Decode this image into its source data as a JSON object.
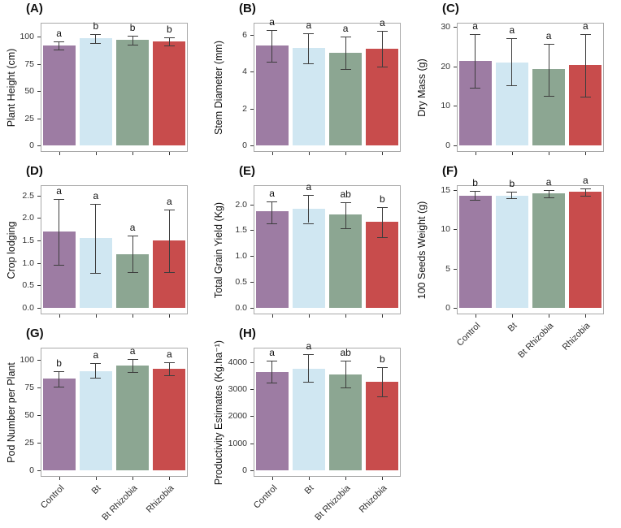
{
  "figure": {
    "background": "#ffffff",
    "description": "Eight-panel bar chart figure comparing four soybean treatments"
  },
  "chart_data": {
    "type": "bar",
    "grid": "off",
    "legend": "none",
    "categories": [
      "Control",
      "Bt",
      "Bt Rhizobia",
      "Rhizobia"
    ],
    "bar_colors": [
      "#9d7ca3",
      "#d0e7f2",
      "#8ca692",
      "#c84c4c"
    ],
    "error_bar_color": "#3d3d3d",
    "axis_box_color": "#a9a9a9",
    "tick_color": "#333333",
    "panels": [
      {
        "tag": "(A)",
        "ylabel": "Plant Height (cm)",
        "ylim": [
          0,
          113
        ],
        "ytick_values": [
          0,
          25,
          50,
          75,
          100
        ],
        "ytick_labels": [
          "0",
          "25",
          "50",
          "75",
          "100"
        ],
        "values": [
          92,
          98.5,
          97,
          96
        ],
        "error_low": [
          88,
          94.5,
          92.5,
          92
        ],
        "error_high": [
          96,
          102.5,
          101,
          99.5
        ],
        "sig_letters": [
          "a",
          "b",
          "b",
          "b"
        ],
        "show_x_tick_labels": false,
        "grid_pos": {
          "row": 0,
          "col": 0
        }
      },
      {
        "tag": "(B)",
        "ylabel": "Stem Diameter (mm)",
        "ylim": [
          0,
          6.65
        ],
        "ytick_values": [
          0,
          2,
          4,
          6
        ],
        "ytick_labels": [
          "0",
          "2",
          "4",
          "6"
        ],
        "values": [
          5.4,
          5.28,
          5.02,
          5.24
        ],
        "error_low": [
          4.55,
          4.45,
          4.15,
          4.27
        ],
        "error_high": [
          6.25,
          6.07,
          5.9,
          6.2
        ],
        "sig_letters": [
          "a",
          "a",
          "a",
          "a"
        ],
        "show_x_tick_labels": false,
        "grid_pos": {
          "row": 0,
          "col": 1
        }
      },
      {
        "tag": "(C)",
        "ylabel": "Dry Mass (g)",
        "ylim": [
          0,
          31
        ],
        "ytick_values": [
          0,
          10,
          20,
          30
        ],
        "ytick_labels": [
          "0",
          "10",
          "20",
          "30"
        ],
        "values": [
          21.4,
          21,
          19.2,
          20.4
        ],
        "error_low": [
          14.5,
          15.1,
          12.6,
          12.4
        ],
        "error_high": [
          28.2,
          27,
          25.6,
          28.1
        ],
        "sig_letters": [
          "a",
          "a",
          "a",
          "a"
        ],
        "show_x_tick_labels": false,
        "grid_pos": {
          "row": 0,
          "col": 2
        }
      },
      {
        "tag": "(D)",
        "ylabel": "Crop lodging",
        "ylim": [
          0,
          2.73
        ],
        "ytick_values": [
          0,
          0.5,
          1,
          1.5,
          2,
          2.5
        ],
        "ytick_labels": [
          "0.0",
          "0.5",
          "1.0",
          "1.5",
          "2.0",
          "2.5"
        ],
        "values": [
          1.7,
          1.55,
          1.2,
          1.5
        ],
        "error_low": [
          0.96,
          0.78,
          0.79,
          0.8
        ],
        "error_high": [
          2.43,
          2.31,
          1.61,
          2.19
        ],
        "sig_letters": [
          "a",
          "a",
          "a",
          "a"
        ],
        "show_x_tick_labels": false,
        "grid_pos": {
          "row": 1,
          "col": 0
        }
      },
      {
        "tag": "(E)",
        "ylabel": "Total Grain Yield (Kg)",
        "ylim": [
          0,
          2.37
        ],
        "ytick_values": [
          0,
          0.5,
          1,
          1.5,
          2
        ],
        "ytick_labels": [
          "0.0",
          "0.5",
          "1.0",
          "1.5",
          "2.0"
        ],
        "values": [
          1.86,
          1.91,
          1.8,
          1.66
        ],
        "error_low": [
          1.64,
          1.64,
          1.54,
          1.37
        ],
        "error_high": [
          2.06,
          2.18,
          2.04,
          1.95
        ],
        "sig_letters": [
          "a",
          "a",
          "ab",
          "b"
        ],
        "show_x_tick_labels": false,
        "grid_pos": {
          "row": 1,
          "col": 1
        }
      },
      {
        "tag": "(F)",
        "ylabel": "100 Seeds Weight (g)",
        "ylim": [
          0,
          15.6
        ],
        "ytick_values": [
          0,
          5,
          10,
          15
        ],
        "ytick_labels": [
          "0",
          "5",
          "10",
          "15"
        ],
        "values": [
          14.25,
          14.3,
          14.55,
          14.75
        ],
        "error_low": [
          13.75,
          13.9,
          14.1,
          14.3
        ],
        "error_high": [
          14.85,
          14.75,
          15,
          15.2
        ],
        "sig_letters": [
          "b",
          "b",
          "a",
          "a"
        ],
        "show_x_tick_labels": true,
        "grid_pos": {
          "row": 1,
          "col": 2
        }
      },
      {
        "tag": "(G)",
        "ylabel": "Pod Number per Plant",
        "ylim": [
          0,
          111
        ],
        "ytick_values": [
          0,
          25,
          50,
          75,
          100
        ],
        "ytick_labels": [
          "0",
          "25",
          "50",
          "75",
          "100"
        ],
        "values": [
          83,
          90,
          95,
          92
        ],
        "error_low": [
          76,
          84,
          89,
          86
        ],
        "error_high": [
          90,
          97,
          101,
          98
        ],
        "sig_letters": [
          "b",
          "a",
          "a",
          "a"
        ],
        "show_x_tick_labels": true,
        "grid_pos": {
          "row": 2,
          "col": 0
        }
      },
      {
        "tag": "(H)",
        "ylabel": "Productivity Estimates (Kg.ha⁻¹)",
        "ylim": [
          0,
          4530
        ],
        "ytick_values": [
          0,
          1000,
          2000,
          3000,
          4000
        ],
        "ytick_labels": [
          "0",
          "1000",
          "2000",
          "3000",
          "4000"
        ],
        "values": [
          3620,
          3740,
          3530,
          3270
        ],
        "error_low": [
          3230,
          3270,
          3050,
          2730
        ],
        "error_high": [
          4040,
          4280,
          4050,
          3820
        ],
        "sig_letters": [
          "a",
          "a",
          "ab",
          "b"
        ],
        "show_x_tick_labels": true,
        "grid_pos": {
          "row": 2,
          "col": 1
        }
      }
    ]
  }
}
